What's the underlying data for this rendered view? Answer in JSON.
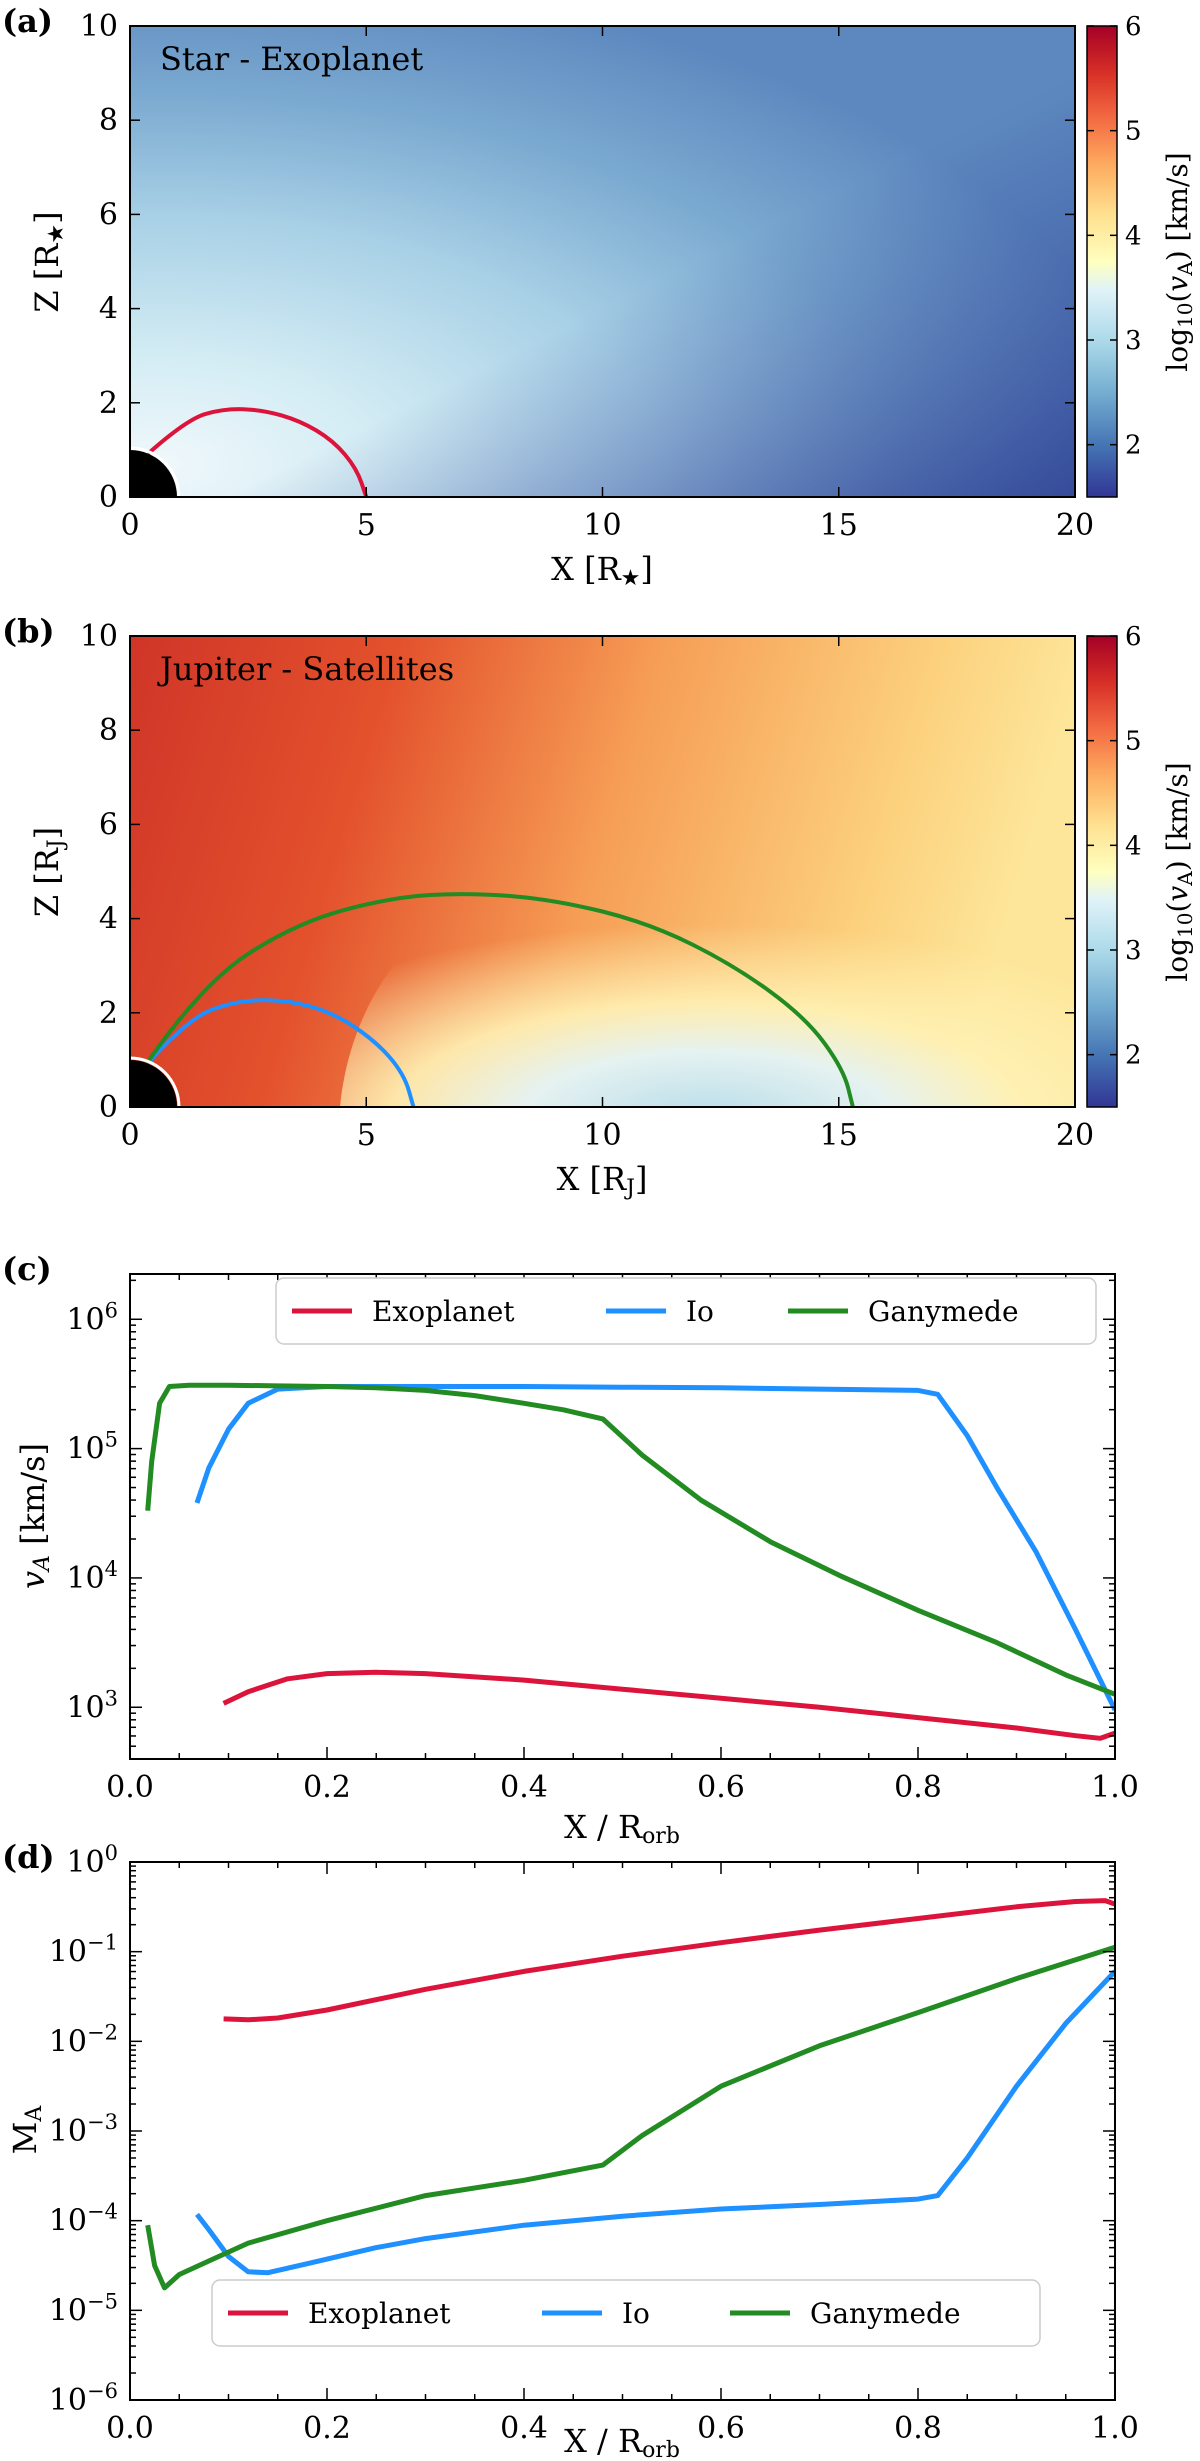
{
  "chart_data": [
    {
      "panel": "(a)",
      "type": "heatmap",
      "title": "Star - Exoplanet",
      "xlabel": "X [R★]",
      "ylabel": "Z [R★]",
      "xlim": [
        0,
        20
      ],
      "ylim": [
        0,
        10
      ],
      "xticks": [
        "0",
        "5",
        "10",
        "15",
        "20"
      ],
      "yticks": [
        "0",
        "2",
        "4",
        "6",
        "8",
        "10"
      ],
      "colorbar": {
        "label": "log10(vA) [km/s]",
        "range": [
          1.5,
          6
        ],
        "ticks": [
          "2",
          "3",
          "4",
          "5",
          "6"
        ]
      },
      "field_lines": [
        {
          "name": "Exoplanet",
          "color": "#dc143c",
          "x": [
            0.38,
            1.2,
            2.0,
            2.8,
            3.6,
            4.3,
            4.8,
            5.0
          ],
          "y": [
            0.92,
            1.65,
            1.88,
            1.85,
            1.62,
            1.2,
            0.6,
            0.0
          ]
        }
      ]
    },
    {
      "panel": "(b)",
      "type": "heatmap",
      "title": "Jupiter - Satellites",
      "xlabel": "X [RJ]",
      "ylabel": "Z [RJ]",
      "xlim": [
        0,
        20
      ],
      "ylim": [
        0,
        10
      ],
      "xticks": [
        "0",
        "5",
        "10",
        "15",
        "20"
      ],
      "yticks": [
        "0",
        "2",
        "4",
        "6",
        "8",
        "10"
      ],
      "colorbar": {
        "label": "log10(vA) [km/s]",
        "range": [
          1.5,
          6
        ],
        "ticks": [
          "2",
          "3",
          "4",
          "5",
          "6"
        ]
      },
      "field_lines": [
        {
          "name": "Io",
          "color": "#1e90ff",
          "x": [
            0.35,
            1.2,
            2.2,
            3.3,
            4.3,
            5.2,
            5.8,
            6.0
          ],
          "y": [
            0.9,
            1.85,
            2.25,
            2.28,
            2.0,
            1.4,
            0.7,
            0.0
          ]
        },
        {
          "name": "Ganymede",
          "color": "#228b22",
          "x": [
            0.3,
            1.5,
            3.5,
            5.5,
            7.2,
            9.0,
            11.0,
            12.8,
            14.3,
            15.1,
            15.3
          ],
          "y": [
            0.85,
            2.6,
            3.9,
            4.45,
            4.55,
            4.4,
            3.9,
            3.0,
            1.9,
            0.8,
            0.0
          ]
        }
      ]
    },
    {
      "panel": "(c)",
      "type": "line",
      "xlabel": "X / Rorb",
      "ylabel": "vA [km/s]",
      "xlim": [
        0,
        1
      ],
      "ylim_log10": [
        2.6,
        6.35
      ],
      "xticks": [
        "0.0",
        "0.2",
        "0.4",
        "0.6",
        "0.8",
        "1.0"
      ],
      "yticks": [
        {
          "base": "10",
          "exp": "3"
        },
        {
          "base": "10",
          "exp": "4"
        },
        {
          "base": "10",
          "exp": "5"
        },
        {
          "base": "10",
          "exp": "6"
        }
      ],
      "legend": [
        "Exoplanet",
        "Io",
        "Ganymede"
      ],
      "series": [
        {
          "name": "Exoplanet",
          "color": "#dc143c",
          "x": [
            0.095,
            0.12,
            0.16,
            0.2,
            0.25,
            0.3,
            0.4,
            0.5,
            0.6,
            0.7,
            0.8,
            0.9,
            0.96,
            0.985,
            1.0
          ],
          "log10_y": [
            3.03,
            3.12,
            3.22,
            3.26,
            3.27,
            3.26,
            3.21,
            3.14,
            3.07,
            3.0,
            2.92,
            2.84,
            2.78,
            2.76,
            2.8
          ]
        },
        {
          "name": "Io",
          "color": "#1e90ff",
          "x": [
            0.068,
            0.08,
            0.1,
            0.12,
            0.15,
            0.2,
            0.3,
            0.4,
            0.5,
            0.6,
            0.7,
            0.8,
            0.82,
            0.85,
            0.88,
            0.92,
            0.96,
            1.0
          ],
          "log10_y": [
            4.58,
            4.85,
            5.15,
            5.35,
            5.46,
            5.48,
            5.48,
            5.48,
            5.475,
            5.47,
            5.46,
            5.45,
            5.42,
            5.1,
            4.7,
            4.2,
            3.6,
            2.98
          ]
        },
        {
          "name": "Ganymede",
          "color": "#228b22",
          "x": [
            0.018,
            0.022,
            0.03,
            0.04,
            0.06,
            0.1,
            0.15,
            0.2,
            0.25,
            0.3,
            0.35,
            0.4,
            0.44,
            0.48,
            0.52,
            0.58,
            0.65,
            0.72,
            0.8,
            0.88,
            0.95,
            1.0
          ],
          "log10_y": [
            4.52,
            4.9,
            5.35,
            5.48,
            5.49,
            5.49,
            5.485,
            5.48,
            5.47,
            5.45,
            5.41,
            5.35,
            5.3,
            5.23,
            4.95,
            4.6,
            4.28,
            4.02,
            3.75,
            3.5,
            3.25,
            3.1
          ]
        }
      ]
    },
    {
      "panel": "(d)",
      "type": "line",
      "xlabel": "X / Rorb",
      "ylabel": "MA",
      "xlim": [
        0,
        1
      ],
      "ylim_log10": [
        -6,
        0
      ],
      "xticks": [
        "0.0",
        "0.2",
        "0.4",
        "0.6",
        "0.8",
        "1.0"
      ],
      "yticks": [
        {
          "base": "10",
          "exp": "−6"
        },
        {
          "base": "10",
          "exp": "−5"
        },
        {
          "base": "10",
          "exp": "−4"
        },
        {
          "base": "10",
          "exp": "−3"
        },
        {
          "base": "10",
          "exp": "−2"
        },
        {
          "base": "10",
          "exp": "−1"
        },
        {
          "base": "10",
          "exp": "0"
        }
      ],
      "legend": [
        "Exoplanet",
        "Io",
        "Ganymede"
      ],
      "series": [
        {
          "name": "Exoplanet",
          "color": "#dc143c",
          "x": [
            0.095,
            0.12,
            0.15,
            0.2,
            0.3,
            0.4,
            0.5,
            0.6,
            0.7,
            0.8,
            0.9,
            0.96,
            0.99,
            1.0
          ],
          "log10_y": [
            -1.75,
            -1.76,
            -1.74,
            -1.65,
            -1.42,
            -1.22,
            -1.05,
            -0.9,
            -0.76,
            -0.63,
            -0.5,
            -0.44,
            -0.43,
            -0.47
          ]
        },
        {
          "name": "Io",
          "color": "#1e90ff",
          "x": [
            0.068,
            0.08,
            0.1,
            0.12,
            0.14,
            0.18,
            0.25,
            0.3,
            0.4,
            0.5,
            0.6,
            0.7,
            0.8,
            0.82,
            0.85,
            0.9,
            0.95,
            1.0
          ],
          "log10_y": [
            -3.93,
            -4.1,
            -4.4,
            -4.57,
            -4.58,
            -4.48,
            -4.3,
            -4.2,
            -4.05,
            -3.95,
            -3.87,
            -3.82,
            -3.76,
            -3.72,
            -3.3,
            -2.5,
            -1.8,
            -1.22
          ]
        },
        {
          "name": "Ganymede",
          "color": "#228b22",
          "x": [
            0.018,
            0.025,
            0.035,
            0.05,
            0.08,
            0.12,
            0.2,
            0.3,
            0.4,
            0.48,
            0.52,
            0.6,
            0.7,
            0.8,
            0.9,
            1.0
          ],
          "log10_y": [
            -4.05,
            -4.5,
            -4.75,
            -4.6,
            -4.45,
            -4.25,
            -4.0,
            -3.72,
            -3.55,
            -3.38,
            -3.05,
            -2.5,
            -2.05,
            -1.68,
            -1.3,
            -0.95
          ]
        }
      ]
    }
  ]
}
